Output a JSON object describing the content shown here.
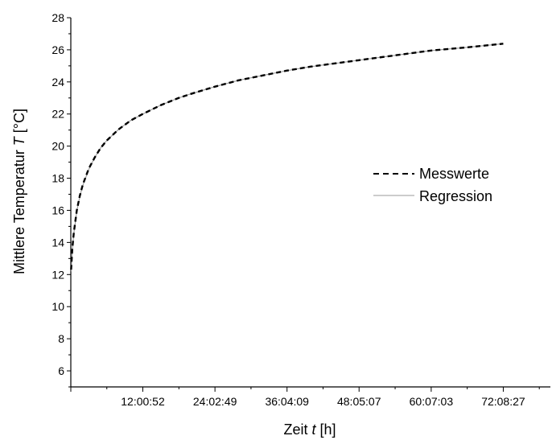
{
  "chart_data": {
    "type": "line",
    "xlabel": {
      "prefix": "Zeit ",
      "var": "t",
      "unit": " [h]"
    },
    "ylabel": {
      "prefix": "Mittlere Temperatur ",
      "var": "T",
      "unit": " [°C]"
    },
    "xlim": [
      0,
      80
    ],
    "ylim": [
      5,
      28
    ],
    "x_ticks": [
      {
        "value": 12.0144,
        "label": "12:00:52"
      },
      {
        "value": 24.0469,
        "label": "24:02:49"
      },
      {
        "value": 36.0692,
        "label": "36:04:09"
      },
      {
        "value": 48.0853,
        "label": "48:05:07"
      },
      {
        "value": 60.1175,
        "label": "60:07:03"
      },
      {
        "value": 72.1408,
        "label": "72:08:27"
      }
    ],
    "y_ticks": [
      6,
      8,
      10,
      12,
      14,
      16,
      18,
      20,
      22,
      24,
      26,
      28
    ],
    "legend_position": "center-right",
    "grid": false,
    "series": [
      {
        "name": "Messwerte",
        "style": "dashed",
        "color": "#000000",
        "x": [
          0.05,
          0.25,
          0.5,
          1,
          1.5,
          2,
          3,
          4,
          5,
          6,
          8,
          10,
          12,
          15,
          18,
          20,
          24,
          28,
          30,
          36,
          40,
          42,
          48,
          54,
          60,
          66,
          72.14
        ],
        "y": [
          12.3,
          13.6,
          14.6,
          16.0,
          16.9,
          17.6,
          18.6,
          19.3,
          19.9,
          20.35,
          21.05,
          21.6,
          22.0,
          22.55,
          23.0,
          23.25,
          23.7,
          24.1,
          24.25,
          24.7,
          24.95,
          25.05,
          25.35,
          25.65,
          25.95,
          26.15,
          26.38
        ]
      },
      {
        "name": "Regression",
        "style": "solid-thin",
        "color": "#9a9a9a",
        "x": [
          0.05,
          0.25,
          0.5,
          1,
          1.5,
          2,
          3,
          4,
          5,
          6,
          8,
          10,
          12,
          15,
          18,
          20,
          24,
          28,
          30,
          36,
          40,
          42,
          48,
          54,
          60,
          66,
          72.14
        ],
        "y": [
          12.2,
          13.5,
          14.55,
          15.95,
          16.85,
          17.55,
          18.55,
          19.3,
          19.9,
          20.35,
          21.05,
          21.6,
          22.0,
          22.55,
          23.0,
          23.25,
          23.7,
          24.1,
          24.25,
          24.7,
          24.95,
          25.05,
          25.35,
          25.65,
          25.95,
          26.15,
          26.38
        ]
      }
    ]
  }
}
